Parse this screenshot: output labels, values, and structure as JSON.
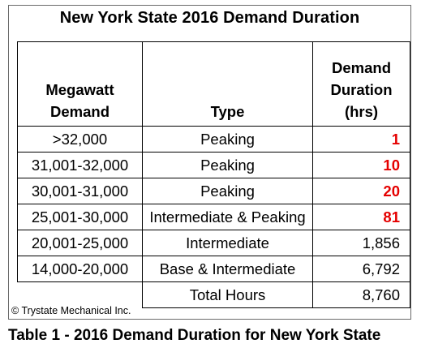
{
  "title": "New York State 2016 Demand Duration",
  "headers": {
    "col1": [
      "Megawatt",
      "Demand"
    ],
    "col2": [
      "Type"
    ],
    "col3": [
      "Demand",
      "Duration",
      "(hrs)"
    ]
  },
  "rows": [
    {
      "mw": ">32,000",
      "type": "Peaking",
      "hours": "1",
      "highlight": true
    },
    {
      "mw": "31,001-32,000",
      "type": "Peaking",
      "hours": "10",
      "highlight": true
    },
    {
      "mw": "30,001-31,000",
      "type": "Peaking",
      "hours": "20",
      "highlight": true
    },
    {
      "mw": "25,001-30,000",
      "type": "Intermediate & Peaking",
      "hours": "81",
      "highlight": true
    },
    {
      "mw": "20,001-25,000",
      "type": "Intermediate",
      "hours": "1,856",
      "highlight": false
    },
    {
      "mw": "14,000-20,000",
      "type": "Base & Intermediate",
      "hours": "6,792",
      "highlight": false
    }
  ],
  "total": {
    "label": "Total Hours",
    "hours": "8,760"
  },
  "copyright": "© Trystate Mechanical Inc.",
  "caption": "Table 1 - 2016 Demand Duration for New York State",
  "colors": {
    "highlight": "#e50000",
    "border": "#000000"
  }
}
